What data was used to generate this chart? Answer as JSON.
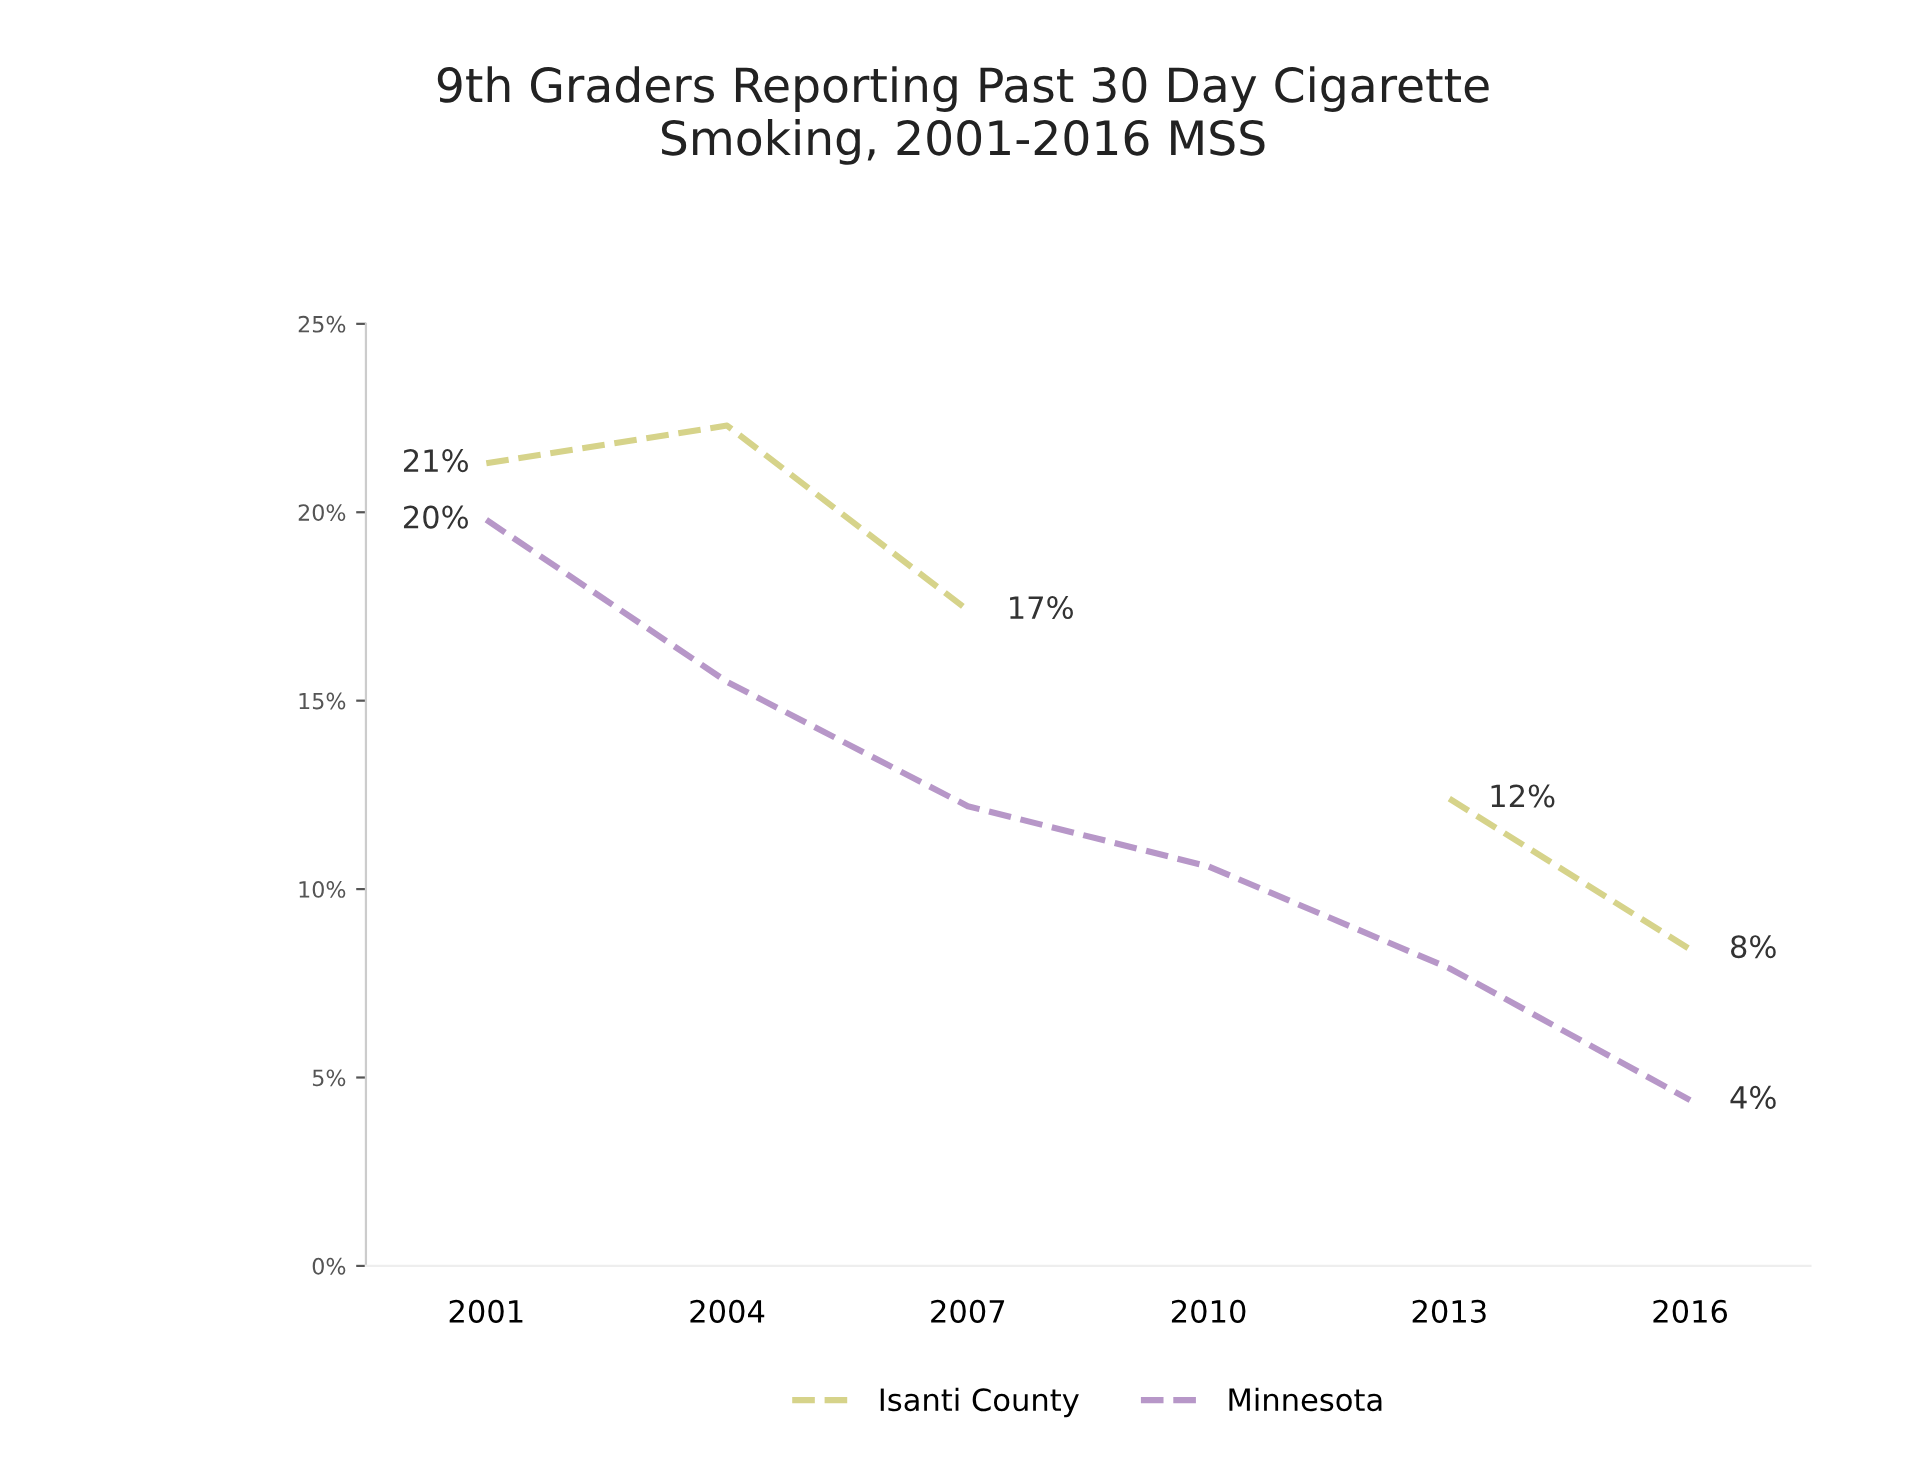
{
  "chart_data": {
    "type": "line",
    "title": "9th Graders Reporting Past 30 Day Cigarette\nSmoking, 2001-2016 MSS",
    "categories": [
      "2001",
      "2004",
      "2007",
      "2010",
      "2013",
      "2016"
    ],
    "series": [
      {
        "name": "Isanti County",
        "color": "#d6d38a",
        "values": [
          21.3,
          22.3,
          17.4,
          null,
          12.4,
          8.4
        ],
        "value_labels": [
          "21%",
          null,
          "17%",
          null,
          "12%",
          "8%"
        ]
      },
      {
        "name": "Minnesota",
        "color": "#b797c8",
        "values": [
          19.8,
          15.5,
          12.2,
          10.6,
          7.9,
          4.4
        ],
        "value_labels": [
          "20%",
          null,
          null,
          null,
          null,
          "4%"
        ]
      }
    ],
    "ylim": [
      0,
      25
    ],
    "yticks": [
      {
        "value": 0,
        "label": "0%"
      },
      {
        "value": 5,
        "label": "5%"
      },
      {
        "value": 10,
        "label": "10%"
      },
      {
        "value": 15,
        "label": "15%"
      },
      {
        "value": 20,
        "label": "20%"
      },
      {
        "value": 25,
        "label": "25%"
      }
    ],
    "grid": false,
    "legend": "bottom",
    "marker": "none",
    "line_style": "dashed"
  }
}
